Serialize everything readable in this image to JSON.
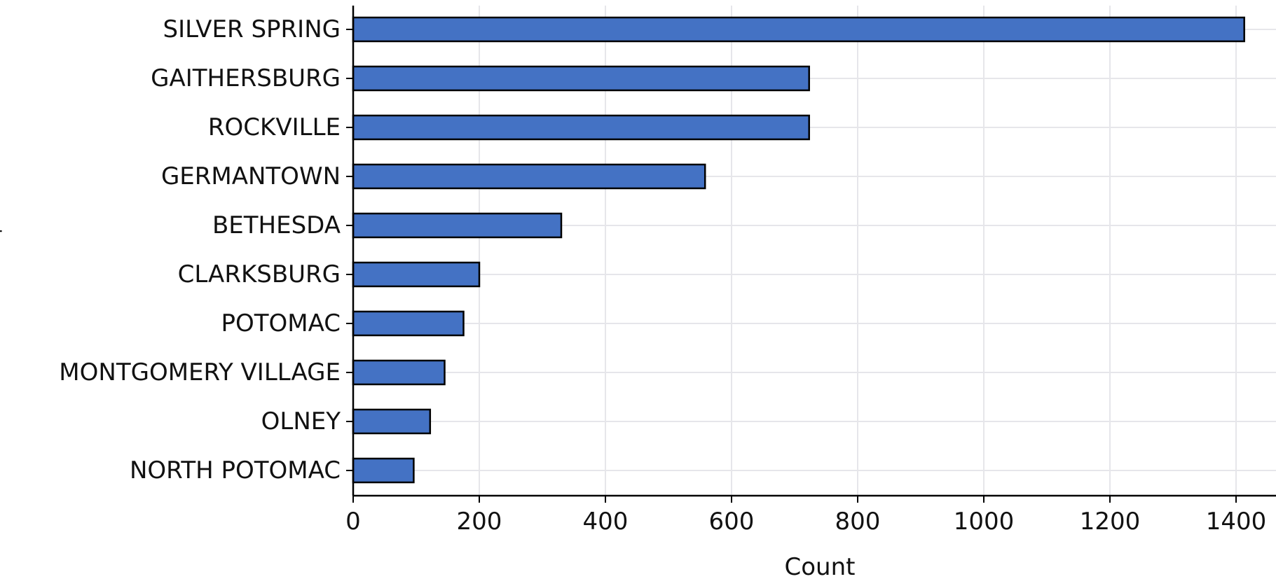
{
  "chart_data": {
    "type": "bar",
    "orientation": "horizontal",
    "categories": [
      "SILVER SPRING",
      "GAITHERSBURG",
      "ROCKVILLE",
      "GERMANTOWN",
      "BETHESDA",
      "CLARKSBURG",
      "POTOMAC",
      "MONTGOMERY VILLAGE",
      "OLNEY",
      "NORTH POTOMAC"
    ],
    "values": [
      1413,
      723,
      723,
      558,
      330,
      200,
      175,
      145,
      122,
      96
    ],
    "title": "",
    "xlabel": "Count",
    "ylabel": "",
    "xlim": [
      0,
      1450
    ],
    "xticks": [
      0,
      200,
      400,
      600,
      800,
      1000,
      1200,
      1400
    ],
    "xtick_labels": [
      "0",
      "200",
      "400",
      "600",
      "800",
      "1000",
      "1200",
      "1400"
    ],
    "grid": true,
    "bar_color": "#4472c4",
    "grid_color": "#e6e6ea",
    "clipped_ylabel_fragment": "ʃ"
  }
}
